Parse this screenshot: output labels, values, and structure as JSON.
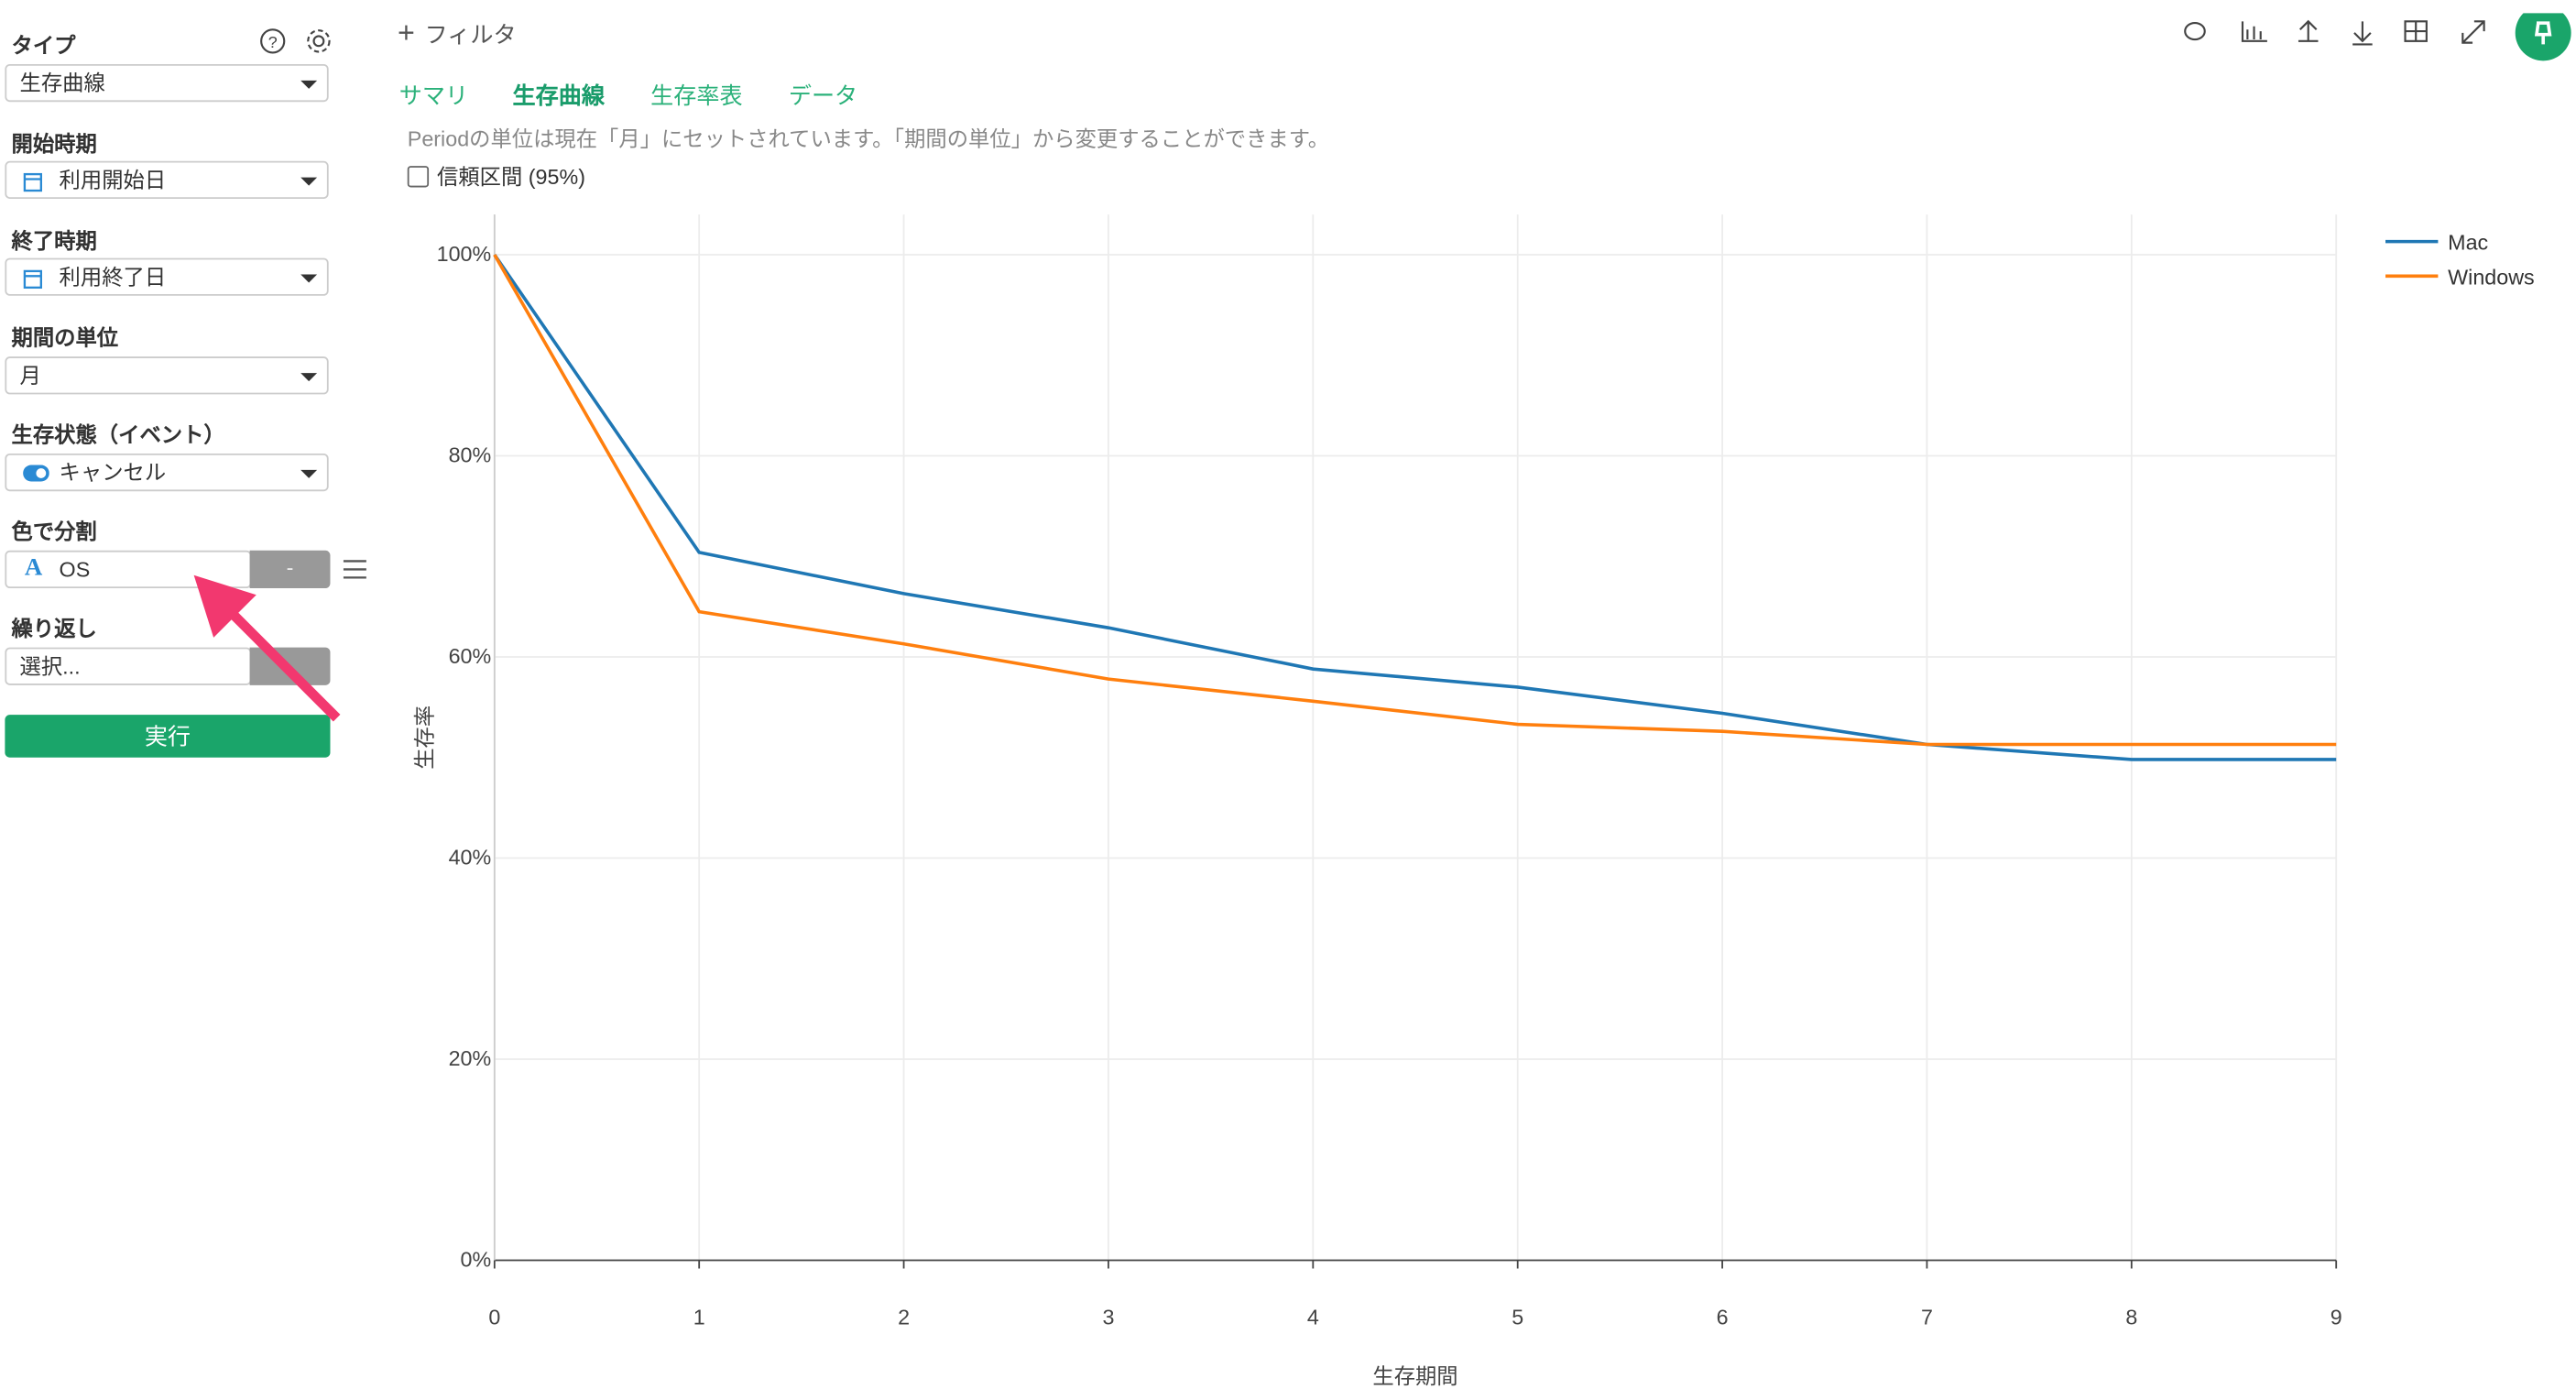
{
  "sidebar": {
    "type_label": "タイプ",
    "type_value": "生存曲線",
    "start_label": "開始時期",
    "start_value": "利用開始日",
    "end_label": "終了時期",
    "end_value": "利用終了日",
    "unit_label": "期間の単位",
    "unit_value": "月",
    "event_label": "生存状態（イベント）",
    "event_value": "キャンセル",
    "color_label": "色で分割",
    "color_value": "OS",
    "color_button": "-",
    "repeat_label": "繰り返し",
    "repeat_value": "選択...",
    "run_button": "実行"
  },
  "toolbar": {
    "filter": "フィルタ"
  },
  "tabs": [
    "サマリ",
    "生存曲線",
    "生存率表",
    "データ"
  ],
  "note": "Periodの単位は現在「月」にセットされています。「期間の単位」から変更することができます。",
  "confidence_checkbox": "信頼区間 (95%)",
  "chart_data": {
    "type": "line",
    "x_label": "生存期間",
    "y_label": "生存率",
    "x": [
      0,
      1,
      2,
      3,
      4,
      5,
      6,
      7,
      8,
      9
    ],
    "series": [
      {
        "name": "Mac",
        "color": "#1f77b4",
        "values": [
          100,
          70.4,
          66.3,
          62.9,
          58.8,
          57.0,
          54.4,
          51.3,
          49.8,
          49.8
        ]
      },
      {
        "name": "Windows",
        "color": "#ff7f0e",
        "values": [
          100,
          64.5,
          61.3,
          57.8,
          55.6,
          53.3,
          52.6,
          51.3,
          51.3,
          51.3
        ]
      }
    ],
    "xlim": [
      0,
      9
    ],
    "xticks": [
      0,
      1,
      2,
      3,
      4,
      5,
      6,
      7,
      8,
      9
    ],
    "ylim": [
      0,
      104
    ],
    "yticks": [
      {
        "value": 0,
        "label": "0%"
      },
      {
        "value": 20,
        "label": "20%"
      },
      {
        "value": 40,
        "label": "40%"
      },
      {
        "value": 60,
        "label": "60%"
      },
      {
        "value": 80,
        "label": "80%"
      },
      {
        "value": 100,
        "label": "100%"
      }
    ],
    "grid": true,
    "legend": "top-right"
  }
}
